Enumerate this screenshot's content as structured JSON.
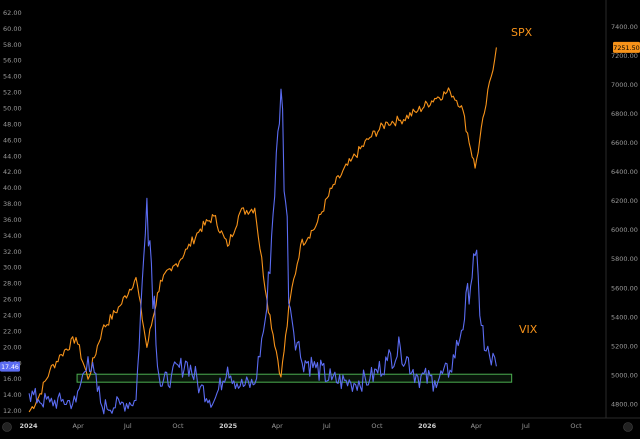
{
  "chart_data": {
    "type": "line",
    "x_ticks": [
      "2024",
      "Apr",
      "Jul",
      "Oct",
      "2025",
      "Apr",
      "Jul",
      "Oct",
      "2026",
      "Apr",
      "Jul",
      "Oct"
    ],
    "left_axis": {
      "range": [
        11.0,
        63.0
      ],
      "ticks": [
        "12.00",
        "14.00",
        "16.00",
        "18.00",
        "20.00",
        "22.00",
        "24.00",
        "26.00",
        "28.00",
        "30.00",
        "32.00",
        "34.00",
        "36.00",
        "38.00",
        "40.00",
        "42.00",
        "44.00",
        "46.00",
        "48.00",
        "50.00",
        "52.00",
        "54.00",
        "56.00",
        "58.00",
        "60.00",
        "62.00"
      ]
    },
    "right_axis": {
      "range": [
        4700,
        7550
      ],
      "ticks": [
        "4800.00",
        "5000.00",
        "5200.00",
        "5400.00",
        "5600.00",
        "5800.00",
        "6000.00",
        "6200.00",
        "6400.00",
        "6600.00",
        "6800.00",
        "7000.00",
        "7200.00",
        "7400.00"
      ]
    },
    "series": [
      {
        "name": "SPX",
        "color": "#f7931a",
        "axis": "right",
        "last_value_label": "7251.50",
        "points": [
          [
            "2024-01-02",
            4742
          ],
          [
            "2024-01-19",
            4840
          ],
          [
            "2024-02-09",
            5026
          ],
          [
            "2024-03-01",
            5137
          ],
          [
            "2024-03-28",
            5254
          ],
          [
            "2024-04-19",
            4967
          ],
          [
            "2024-05-15",
            5308
          ],
          [
            "2024-06-17",
            5473
          ],
          [
            "2024-07-16",
            5667
          ],
          [
            "2024-08-05",
            5186
          ],
          [
            "2024-08-30",
            5648
          ],
          [
            "2024-09-19",
            5713
          ],
          [
            "2024-10-18",
            5864
          ],
          [
            "2024-11-11",
            6001
          ],
          [
            "2024-12-06",
            6090
          ],
          [
            "2024-12-31",
            5882
          ],
          [
            "2025-01-23",
            6118
          ],
          [
            "2025-02-19",
            6144
          ],
          [
            "2025-03-13",
            5521
          ],
          [
            "2025-04-08",
            4982
          ],
          [
            "2025-04-25",
            5525
          ],
          [
            "2025-05-14",
            5892
          ],
          [
            "2025-06-11",
            6022
          ],
          [
            "2025-07-10",
            6280
          ],
          [
            "2025-08-14",
            6468
          ],
          [
            "2025-09-18",
            6631
          ],
          [
            "2025-10-20",
            6735
          ],
          [
            "2025-11-13",
            6750
          ],
          [
            "2025-12-15",
            6816
          ],
          [
            "2026-01-15",
            6900
          ],
          [
            "2026-02-12",
            6950
          ],
          [
            "2026-03-05",
            6850
          ],
          [
            "2026-03-30",
            6420
          ],
          [
            "2026-04-16",
            6800
          ],
          [
            "2026-05-08",
            7251.5
          ]
        ]
      },
      {
        "name": "VIX",
        "color": "#5b6cf2",
        "axis": "left",
        "points": [
          [
            "2024-01-02",
            14.1
          ],
          [
            "2024-01-19",
            13.3
          ],
          [
            "2024-02-09",
            13.0
          ],
          [
            "2024-03-01",
            13.1
          ],
          [
            "2024-03-28",
            13.0
          ],
          [
            "2024-04-19",
            18.7
          ],
          [
            "2024-05-15",
            12.4
          ],
          [
            "2024-06-17",
            12.7
          ],
          [
            "2024-07-16",
            13.2
          ],
          [
            "2024-08-05",
            38.6
          ],
          [
            "2024-08-30",
            15.0
          ],
          [
            "2024-09-19",
            16.3
          ],
          [
            "2024-10-18",
            18.0
          ],
          [
            "2024-11-11",
            14.9
          ],
          [
            "2024-12-06",
            13.1
          ],
          [
            "2024-12-31",
            17.4
          ],
          [
            "2025-01-23",
            15.0
          ],
          [
            "2025-02-19",
            15.3
          ],
          [
            "2025-03-13",
            24.7
          ],
          [
            "2025-04-08",
            52.3
          ],
          [
            "2025-04-25",
            24.8
          ],
          [
            "2025-05-14",
            18.6
          ],
          [
            "2025-06-11",
            17.3
          ],
          [
            "2025-07-10",
            15.8
          ],
          [
            "2025-08-14",
            15.4
          ],
          [
            "2025-09-18",
            15.9
          ],
          [
            "2025-10-20",
            18.2
          ],
          [
            "2025-11-13",
            19.8
          ],
          [
            "2025-12-15",
            16.2
          ],
          [
            "2026-01-15",
            15.7
          ],
          [
            "2026-02-12",
            17.0
          ],
          [
            "2026-03-05",
            22.0
          ],
          [
            "2026-03-30",
            31.4
          ],
          [
            "2026-04-16",
            19.5
          ],
          [
            "2026-05-08",
            17.5
          ]
        ]
      }
    ],
    "annotations": [
      {
        "text": "SPX",
        "color": "#f7931a"
      },
      {
        "text": "VIX",
        "color": "#f7931a"
      }
    ],
    "support_band": {
      "color": "#4caf50",
      "left_axis_range": [
        15.5,
        16.5
      ]
    },
    "left_price_badge": "17.46",
    "grid": false,
    "legend": "none"
  }
}
